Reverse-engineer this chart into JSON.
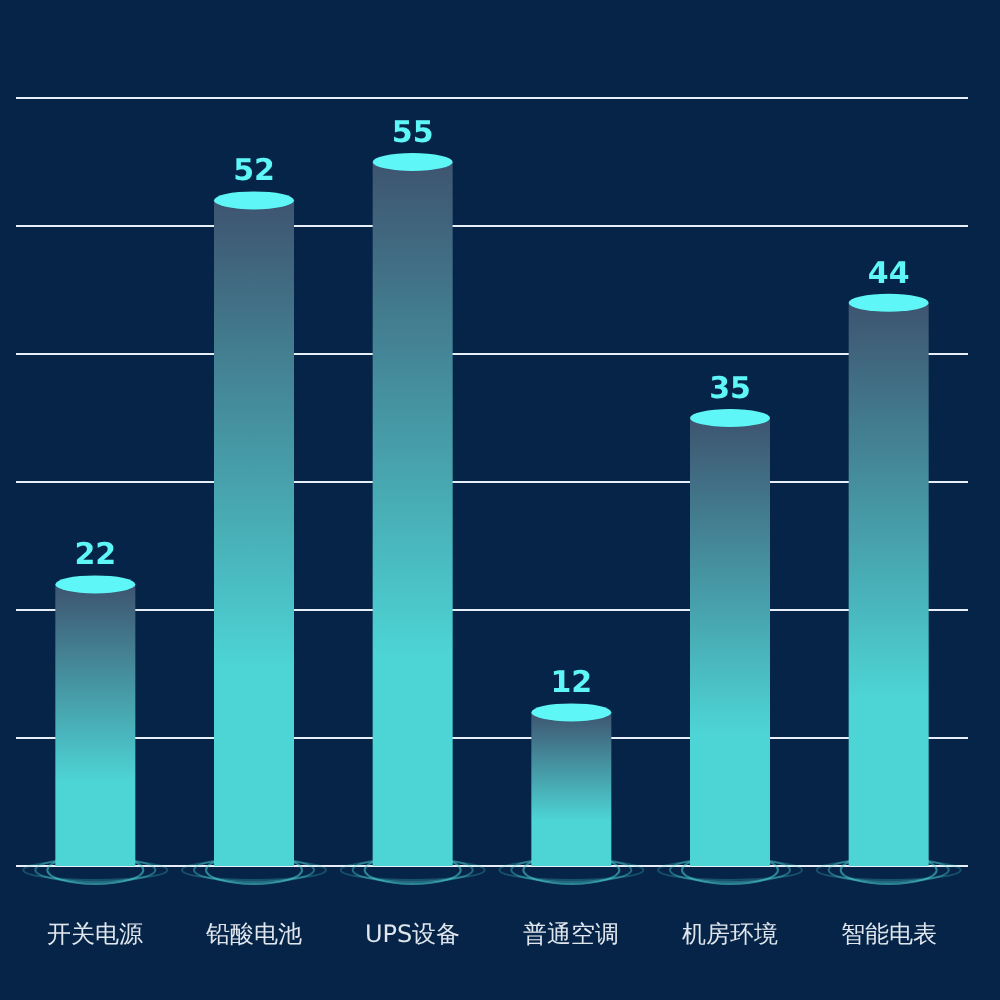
{
  "chart_data": {
    "type": "bar",
    "categories": [
      "开关电源",
      "铅酸电池",
      "UPS设备",
      "普通空调",
      "机房环境",
      "智能电表"
    ],
    "values": [
      22,
      52,
      55,
      12,
      35,
      44
    ],
    "color": "#4dd4d4",
    "data_labels": true,
    "ylim": [
      0,
      60
    ],
    "yticks": [
      {
        "value": 0,
        "label": null
      },
      {
        "value": 10,
        "label": null
      },
      {
        "value": 20,
        "label": null
      },
      {
        "value": 30,
        "label": null
      },
      {
        "value": 40,
        "label": null
      },
      {
        "value": 50,
        "label": null
      },
      {
        "value": 60,
        "label": null
      }
    ],
    "tick_labels": "x",
    "grid": "y"
  }
}
